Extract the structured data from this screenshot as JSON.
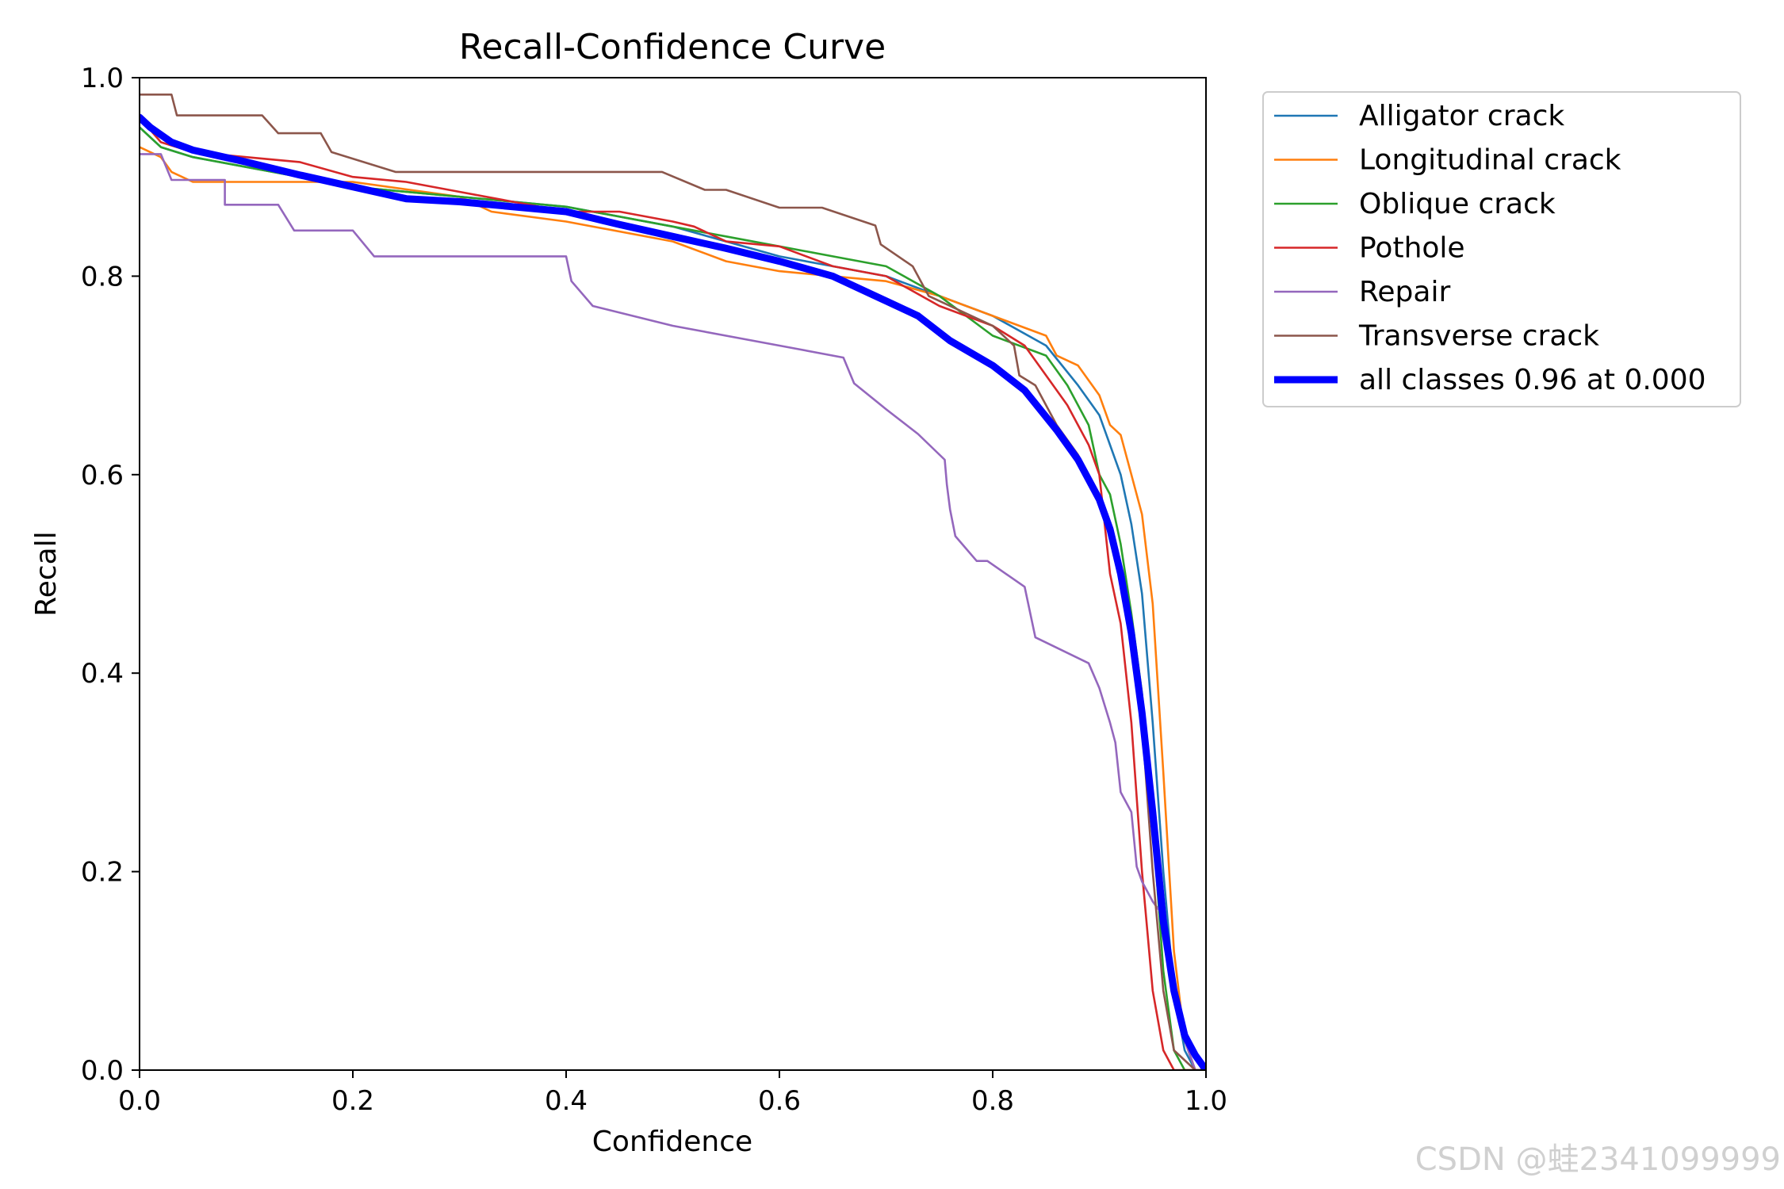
{
  "chart_data": {
    "type": "line",
    "title": "Recall-Confidence Curve",
    "xlabel": "Confidence",
    "ylabel": "Recall",
    "xlim": [
      0,
      1
    ],
    "ylim": [
      0,
      1
    ],
    "xticks": [
      "0.0",
      "0.2",
      "0.4",
      "0.6",
      "0.8",
      "1.0"
    ],
    "yticks": [
      "0.0",
      "0.2",
      "0.4",
      "0.6",
      "0.8",
      "1.0"
    ],
    "legend_position": "outside-top-right",
    "series": [
      {
        "name": "Alligator crack",
        "color": "#1f77b4",
        "points": [
          [
            0,
            0.95
          ],
          [
            0.02,
            0.93
          ],
          [
            0.05,
            0.92
          ],
          [
            0.1,
            0.91
          ],
          [
            0.2,
            0.89
          ],
          [
            0.3,
            0.88
          ],
          [
            0.4,
            0.87
          ],
          [
            0.5,
            0.85
          ],
          [
            0.6,
            0.82
          ],
          [
            0.65,
            0.81
          ],
          [
            0.7,
            0.8
          ],
          [
            0.75,
            0.78
          ],
          [
            0.8,
            0.76
          ],
          [
            0.85,
            0.73
          ],
          [
            0.88,
            0.69
          ],
          [
            0.9,
            0.66
          ],
          [
            0.92,
            0.6
          ],
          [
            0.93,
            0.55
          ],
          [
            0.94,
            0.48
          ],
          [
            0.95,
            0.35
          ],
          [
            0.96,
            0.2
          ],
          [
            0.97,
            0.08
          ],
          [
            0.98,
            0.02
          ],
          [
            0.99,
            0.0
          ],
          [
            1,
            0
          ]
        ]
      },
      {
        "name": "Longitudinal crack",
        "color": "#ff7f0e",
        "points": [
          [
            0,
            0.93
          ],
          [
            0.02,
            0.92
          ],
          [
            0.03,
            0.905
          ],
          [
            0.05,
            0.895
          ],
          [
            0.1,
            0.895
          ],
          [
            0.2,
            0.895
          ],
          [
            0.3,
            0.88
          ],
          [
            0.33,
            0.865
          ],
          [
            0.4,
            0.855
          ],
          [
            0.5,
            0.835
          ],
          [
            0.55,
            0.815
          ],
          [
            0.6,
            0.805
          ],
          [
            0.65,
            0.8
          ],
          [
            0.7,
            0.795
          ],
          [
            0.75,
            0.78
          ],
          [
            0.8,
            0.76
          ],
          [
            0.85,
            0.74
          ],
          [
            0.86,
            0.72
          ],
          [
            0.88,
            0.71
          ],
          [
            0.9,
            0.68
          ],
          [
            0.91,
            0.65
          ],
          [
            0.92,
            0.64
          ],
          [
            0.93,
            0.6
          ],
          [
            0.94,
            0.56
          ],
          [
            0.95,
            0.47
          ],
          [
            0.96,
            0.3
          ],
          [
            0.97,
            0.12
          ],
          [
            0.98,
            0.03
          ],
          [
            0.99,
            0
          ],
          [
            1,
            0
          ]
        ]
      },
      {
        "name": "Oblique crack",
        "color": "#2ca02c",
        "points": [
          [
            0,
            0.95
          ],
          [
            0.02,
            0.93
          ],
          [
            0.05,
            0.92
          ],
          [
            0.1,
            0.91
          ],
          [
            0.2,
            0.89
          ],
          [
            0.3,
            0.88
          ],
          [
            0.4,
            0.87
          ],
          [
            0.5,
            0.85
          ],
          [
            0.55,
            0.84
          ],
          [
            0.6,
            0.83
          ],
          [
            0.65,
            0.82
          ],
          [
            0.7,
            0.81
          ],
          [
            0.75,
            0.78
          ],
          [
            0.8,
            0.74
          ],
          [
            0.85,
            0.72
          ],
          [
            0.87,
            0.69
          ],
          [
            0.89,
            0.65
          ],
          [
            0.9,
            0.6
          ],
          [
            0.91,
            0.58
          ],
          [
            0.92,
            0.53
          ],
          [
            0.93,
            0.46
          ],
          [
            0.94,
            0.38
          ],
          [
            0.95,
            0.25
          ],
          [
            0.96,
            0.1
          ],
          [
            0.97,
            0.02
          ],
          [
            0.98,
            0
          ],
          [
            1,
            0
          ]
        ]
      },
      {
        "name": "Pothole",
        "color": "#d62728",
        "points": [
          [
            0,
            0.96
          ],
          [
            0.02,
            0.935
          ],
          [
            0.05,
            0.925
          ],
          [
            0.1,
            0.92
          ],
          [
            0.15,
            0.915
          ],
          [
            0.2,
            0.9
          ],
          [
            0.25,
            0.895
          ],
          [
            0.3,
            0.885
          ],
          [
            0.35,
            0.875
          ],
          [
            0.4,
            0.865
          ],
          [
            0.45,
            0.865
          ],
          [
            0.5,
            0.855
          ],
          [
            0.52,
            0.85
          ],
          [
            0.55,
            0.835
          ],
          [
            0.6,
            0.83
          ],
          [
            0.65,
            0.81
          ],
          [
            0.7,
            0.8
          ],
          [
            0.75,
            0.77
          ],
          [
            0.8,
            0.75
          ],
          [
            0.83,
            0.73
          ],
          [
            0.85,
            0.7
          ],
          [
            0.87,
            0.67
          ],
          [
            0.89,
            0.63
          ],
          [
            0.9,
            0.6
          ],
          [
            0.91,
            0.5
          ],
          [
            0.92,
            0.45
          ],
          [
            0.93,
            0.35
          ],
          [
            0.94,
            0.2
          ],
          [
            0.95,
            0.08
          ],
          [
            0.96,
            0.02
          ],
          [
            0.97,
            0.0
          ],
          [
            1,
            0
          ]
        ]
      },
      {
        "name": "Repair",
        "color": "#9467bd",
        "points": [
          [
            0,
            0.923
          ],
          [
            0.02,
            0.923
          ],
          [
            0.03,
            0.897
          ],
          [
            0.08,
            0.897
          ],
          [
            0.08,
            0.872
          ],
          [
            0.13,
            0.872
          ],
          [
            0.145,
            0.846
          ],
          [
            0.2,
            0.846
          ],
          [
            0.22,
            0.82
          ],
          [
            0.3,
            0.82
          ],
          [
            0.4,
            0.82
          ],
          [
            0.405,
            0.795
          ],
          [
            0.425,
            0.77
          ],
          [
            0.5,
            0.75
          ],
          [
            0.6,
            0.73
          ],
          [
            0.66,
            0.718
          ],
          [
            0.67,
            0.692
          ],
          [
            0.7,
            0.666
          ],
          [
            0.73,
            0.641
          ],
          [
            0.755,
            0.615
          ],
          [
            0.757,
            0.59
          ],
          [
            0.76,
            0.565
          ],
          [
            0.765,
            0.538
          ],
          [
            0.785,
            0.513
          ],
          [
            0.795,
            0.513
          ],
          [
            0.83,
            0.487
          ],
          [
            0.84,
            0.436
          ],
          [
            0.89,
            0.41
          ],
          [
            0.9,
            0.385
          ],
          [
            0.91,
            0.35
          ],
          [
            0.915,
            0.33
          ],
          [
            0.92,
            0.28
          ],
          [
            0.93,
            0.26
          ],
          [
            0.935,
            0.205
          ],
          [
            0.94,
            0.19
          ],
          [
            0.95,
            0.17
          ],
          [
            0.96,
            0.155
          ],
          [
            0.97,
            0.08
          ],
          [
            0.98,
            0.03
          ],
          [
            0.99,
            0
          ],
          [
            1,
            0
          ]
        ]
      },
      {
        "name": "Transverse crack",
        "color": "#8c564b",
        "points": [
          [
            0,
            0.983
          ],
          [
            0.03,
            0.983
          ],
          [
            0.035,
            0.962
          ],
          [
            0.115,
            0.962
          ],
          [
            0.13,
            0.944
          ],
          [
            0.17,
            0.944
          ],
          [
            0.18,
            0.925
          ],
          [
            0.24,
            0.905
          ],
          [
            0.3,
            0.905
          ],
          [
            0.4,
            0.905
          ],
          [
            0.49,
            0.905
          ],
          [
            0.53,
            0.887
          ],
          [
            0.55,
            0.887
          ],
          [
            0.6,
            0.869
          ],
          [
            0.64,
            0.869
          ],
          [
            0.69,
            0.851
          ],
          [
            0.695,
            0.832
          ],
          [
            0.725,
            0.81
          ],
          [
            0.74,
            0.78
          ],
          [
            0.8,
            0.75
          ],
          [
            0.82,
            0.73
          ],
          [
            0.825,
            0.7
          ],
          [
            0.84,
            0.69
          ],
          [
            0.86,
            0.65
          ],
          [
            0.88,
            0.62
          ],
          [
            0.9,
            0.58
          ],
          [
            0.91,
            0.55
          ],
          [
            0.92,
            0.5
          ],
          [
            0.93,
            0.45
          ],
          [
            0.94,
            0.35
          ],
          [
            0.95,
            0.2
          ],
          [
            0.96,
            0.08
          ],
          [
            0.97,
            0.02
          ],
          [
            0.99,
            0
          ],
          [
            1,
            0
          ]
        ]
      },
      {
        "name": "all classes 0.96 at 0.000",
        "color": "#0000ff",
        "thick": true,
        "points": [
          [
            0,
            0.96
          ],
          [
            0.01,
            0.95
          ],
          [
            0.03,
            0.935
          ],
          [
            0.05,
            0.927
          ],
          [
            0.1,
            0.915
          ],
          [
            0.15,
            0.902
          ],
          [
            0.2,
            0.89
          ],
          [
            0.25,
            0.878
          ],
          [
            0.3,
            0.875
          ],
          [
            0.35,
            0.87
          ],
          [
            0.4,
            0.865
          ],
          [
            0.45,
            0.852
          ],
          [
            0.5,
            0.84
          ],
          [
            0.55,
            0.828
          ],
          [
            0.6,
            0.815
          ],
          [
            0.65,
            0.8
          ],
          [
            0.7,
            0.775
          ],
          [
            0.73,
            0.76
          ],
          [
            0.76,
            0.735
          ],
          [
            0.8,
            0.71
          ],
          [
            0.83,
            0.685
          ],
          [
            0.86,
            0.645
          ],
          [
            0.88,
            0.615
          ],
          [
            0.9,
            0.575
          ],
          [
            0.91,
            0.545
          ],
          [
            0.92,
            0.5
          ],
          [
            0.93,
            0.44
          ],
          [
            0.94,
            0.36
          ],
          [
            0.95,
            0.26
          ],
          [
            0.96,
            0.15
          ],
          [
            0.97,
            0.08
          ],
          [
            0.98,
            0.035
          ],
          [
            0.99,
            0.015
          ],
          [
            1,
            0
          ]
        ]
      }
    ]
  },
  "watermark": "CSDN @蛙2341099999"
}
